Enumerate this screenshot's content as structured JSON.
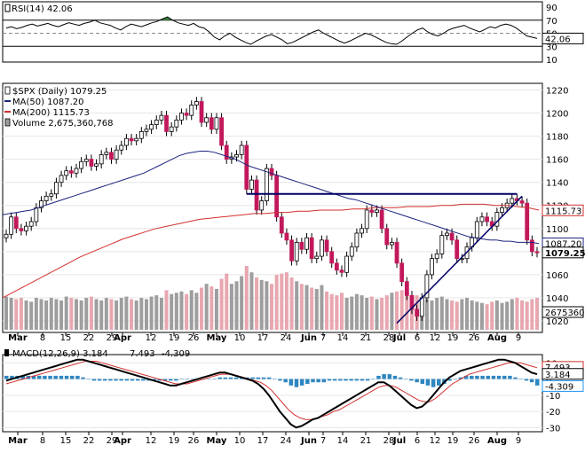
{
  "chart_data": [
    {
      "type": "line",
      "panel": "rsi",
      "legend": "RSI(14) 42.06",
      "last_value_label": "42.06",
      "y_ticks": [
        "90",
        "70",
        "50",
        "30",
        "10"
      ],
      "ylim": [
        10,
        90
      ],
      "reference_levels": [
        70,
        50,
        30
      ],
      "series": [
        {
          "values": [
            58,
            60,
            57,
            59,
            62,
            64,
            61,
            63,
            65,
            62,
            60,
            63,
            66,
            64,
            62,
            65,
            67,
            70,
            66,
            64,
            62,
            58,
            55,
            60,
            64,
            62,
            60,
            63,
            66,
            68,
            72,
            75,
            70,
            66,
            64,
            62,
            65,
            60,
            58,
            52,
            44,
            40,
            46,
            50,
            44,
            40,
            36,
            33,
            38,
            42,
            46,
            48,
            44,
            40,
            34,
            36,
            40,
            44,
            48,
            52,
            55,
            50,
            46,
            42,
            38,
            35,
            38,
            42,
            46,
            50,
            48,
            44,
            40,
            36,
            34,
            33,
            38,
            44,
            50,
            55,
            58,
            52,
            48,
            46,
            50,
            55,
            58,
            60,
            62,
            58,
            55,
            52,
            56,
            60,
            58,
            62,
            64,
            62,
            58,
            52,
            46,
            44,
            42
          ]
        }
      ],
      "colors": {
        "line": "#000000",
        "overbought_fill": "#2e7d32",
        "oversold_fill": "#c62828"
      }
    },
    {
      "type": "candlestick",
      "panel": "price",
      "legend": [
        {
          "label": "$SPX (Daily) 1079.25",
          "marker": "candle",
          "color": "#000000"
        },
        {
          "label": "MA(50) 1087.20",
          "marker": "line",
          "color": "#1a237e"
        },
        {
          "label": "MA(200) 1115.73",
          "marker": "line",
          "color": "#d32f2f"
        },
        {
          "label": "Volume 2,675,360,768",
          "marker": "bar",
          "color": "#9e9e9e"
        }
      ],
      "y_ticks": [
        "1220",
        "1200",
        "1180",
        "1160",
        "1140",
        "1120",
        "1100",
        "1080",
        "1060",
        "1040",
        "1020"
      ],
      "ylim": [
        1010,
        1225
      ],
      "right_labels": [
        "1115.73",
        "1087.20",
        "1079.25",
        "2675360768"
      ],
      "close": [
        1095,
        1110,
        1100,
        1098,
        1102,
        1106,
        1118,
        1124,
        1128,
        1130,
        1140,
        1146,
        1150,
        1148,
        1152,
        1158,
        1160,
        1154,
        1156,
        1164,
        1166,
        1160,
        1168,
        1172,
        1178,
        1176,
        1178,
        1184,
        1186,
        1190,
        1194,
        1198,
        1184,
        1188,
        1194,
        1200,
        1198,
        1207,
        1210,
        1192,
        1196,
        1186,
        1196,
        1172,
        1160,
        1162,
        1164,
        1172,
        1134,
        1142,
        1116,
        1124,
        1152,
        1146,
        1110,
        1096,
        1090,
        1072,
        1088,
        1082,
        1092,
        1074,
        1076,
        1090,
        1080,
        1070,
        1064,
        1062,
        1076,
        1084,
        1096,
        1100,
        1116,
        1114,
        1116,
        1100,
        1086,
        1088,
        1070,
        1054,
        1042,
        1030,
        1024,
        1040,
        1060,
        1074,
        1078,
        1094,
        1096,
        1090,
        1074,
        1074,
        1084,
        1092,
        1106,
        1110,
        1106,
        1102,
        1114,
        1118,
        1122,
        1126,
        1124,
        1122,
        1090,
        1080,
        1079
      ],
      "ma50": [
        1112,
        1113,
        1114,
        1115,
        1116,
        1118,
        1120,
        1122,
        1124,
        1126,
        1128,
        1130,
        1132,
        1134,
        1136,
        1138,
        1140,
        1142,
        1144,
        1146,
        1148,
        1151,
        1154,
        1157,
        1160,
        1163,
        1165,
        1166,
        1167,
        1167,
        1166,
        1164,
        1162,
        1160,
        1157,
        1154,
        1152,
        1150,
        1148,
        1146,
        1144,
        1142,
        1140,
        1138,
        1136,
        1134,
        1132,
        1130,
        1128,
        1126,
        1125,
        1123,
        1121,
        1119,
        1117,
        1115,
        1113,
        1111,
        1109,
        1107,
        1105,
        1103,
        1101,
        1099,
        1097,
        1095,
        1093,
        1092,
        1091,
        1090,
        1090,
        1089,
        1089,
        1088,
        1088,
        1088,
        1087
      ],
      "ma200": [
        1040,
        1045,
        1050,
        1055,
        1060,
        1065,
        1070,
        1075,
        1079,
        1083,
        1087,
        1091,
        1094,
        1097,
        1100,
        1102,
        1104,
        1106,
        1108,
        1109,
        1110,
        1111,
        1112,
        1113,
        1113,
        1114,
        1114,
        1115,
        1115,
        1116,
        1116,
        1116,
        1117,
        1117,
        1118,
        1118,
        1118,
        1119,
        1119,
        1119,
        1120,
        1120,
        1121,
        1121,
        1121,
        1120,
        1120,
        1119,
        1118,
        1116
      ],
      "volume": [
        0.52,
        0.5,
        0.48,
        0.5,
        0.46,
        0.44,
        0.5,
        0.48,
        0.46,
        0.5,
        0.48,
        0.46,
        0.52,
        0.5,
        0.48,
        0.46,
        0.5,
        0.52,
        0.48,
        0.46,
        0.5,
        0.48,
        0.46,
        0.5,
        0.52,
        0.48,
        0.46,
        0.5,
        0.48,
        0.52,
        0.54,
        0.5,
        0.62,
        0.56,
        0.58,
        0.6,
        0.56,
        0.62,
        0.58,
        0.66,
        0.72,
        0.68,
        0.64,
        0.8,
        0.88,
        0.72,
        0.76,
        0.84,
        1.0,
        0.9,
        0.82,
        0.78,
        0.76,
        0.72,
        0.86,
        0.88,
        0.9,
        0.82,
        0.76,
        0.72,
        0.7,
        0.66,
        0.64,
        0.7,
        0.6,
        0.56,
        0.54,
        0.58,
        0.5,
        0.52,
        0.56,
        0.54,
        0.5,
        0.52,
        0.48,
        0.5,
        0.54,
        0.58,
        0.6,
        0.62,
        0.56,
        0.52,
        0.54,
        0.5,
        0.48,
        0.46,
        0.5,
        0.52,
        0.48,
        0.46,
        0.44,
        0.48,
        0.5,
        0.46,
        0.44,
        0.42,
        0.4,
        0.44,
        0.46,
        0.42,
        0.44,
        0.48,
        0.5,
        0.46,
        0.44,
        0.48,
        0.5
      ],
      "annotations": [
        {
          "type": "horizontal_resistance",
          "y": 1130,
          "start_index": 48,
          "end_index": 102
        },
        {
          "type": "trendline",
          "from": {
            "index": 78,
            "value": 1018
          },
          "to": {
            "index": 103,
            "value": 1128
          }
        }
      ],
      "colors": {
        "up": "#ffffff",
        "down": "#c2185b",
        "wick": "#000000",
        "volume_up": "#9e9e9e",
        "volume_down": "#e8a7b0",
        "annotation": "#000066"
      }
    },
    {
      "type": "line",
      "panel": "macd",
      "legend": [
        {
          "label": "MACD(12,26,9) 3.184",
          "color": "#000000"
        },
        {
          "label": "7.493",
          "color": "#d32f2f"
        },
        {
          "label": "-4.309",
          "color": "#2196f3"
        }
      ],
      "y_ticks": [
        "10",
        "0",
        "-10",
        "-20",
        "-30"
      ],
      "ylim": [
        -32,
        14
      ],
      "right_labels": [
        "7.493",
        "3.184",
        "-4.309"
      ],
      "series": [
        {
          "name": "MACD",
          "values": [
            -1,
            0,
            1,
            2,
            3,
            4,
            5,
            6,
            7,
            8,
            9,
            10,
            11,
            12,
            12,
            11,
            10,
            9,
            8,
            7,
            6,
            5,
            4,
            3,
            2,
            1,
            0,
            -1,
            -2,
            -3,
            -4,
            -4,
            -3,
            -2,
            -1,
            0,
            1,
            2,
            3,
            4,
            4,
            3,
            2,
            1,
            0,
            -1,
            -3,
            -6,
            -10,
            -15,
            -20,
            -24,
            -28,
            -30,
            -29,
            -27,
            -25,
            -24,
            -22,
            -20,
            -18,
            -16,
            -14,
            -12,
            -10,
            -8,
            -6,
            -4,
            -2,
            -2,
            -4,
            -7,
            -10,
            -13,
            -16,
            -18,
            -17,
            -14,
            -10,
            -6,
            -2,
            1,
            3,
            5,
            6,
            7,
            8,
            9,
            10,
            11,
            12,
            12,
            11,
            10,
            8,
            6,
            4,
            3
          ]
        },
        {
          "name": "Signal",
          "values": [
            -3,
            -2,
            -1,
            0,
            1,
            2,
            3,
            4,
            5,
            6,
            7,
            8,
            9,
            10,
            11,
            11,
            11,
            10,
            9,
            8,
            7,
            6,
            5,
            4,
            3,
            2,
            1,
            0,
            -1,
            -2,
            -3,
            -3,
            -3,
            -2,
            -1,
            0,
            1,
            2,
            3,
            3,
            3,
            2,
            1,
            0,
            -1,
            -2,
            -4,
            -7,
            -11,
            -15,
            -19,
            -22,
            -24,
            -25,
            -25,
            -24,
            -23,
            -22,
            -20,
            -19,
            -17,
            -15,
            -13,
            -11,
            -9,
            -7,
            -5,
            -4,
            -4,
            -5,
            -7,
            -9,
            -11,
            -13,
            -14,
            -14,
            -12,
            -9,
            -6,
            -3,
            -1,
            1,
            3,
            4,
            5,
            6,
            7,
            8,
            9,
            10,
            10,
            10,
            9,
            8,
            7
          ]
        },
        {
          "name": "Histogram",
          "values": [
            2,
            2,
            2,
            2,
            2,
            2,
            2,
            2,
            2,
            2,
            2,
            2,
            2,
            2,
            1,
            0,
            -1,
            -1,
            -1,
            -1,
            -1,
            -1,
            -1,
            -1,
            -1,
            -1,
            -1,
            -1,
            -1,
            -1,
            -1,
            -1,
            0,
            0,
            0,
            0,
            0,
            0,
            0,
            1,
            1,
            1,
            1,
            1,
            1,
            1,
            1,
            1,
            1,
            0,
            -1,
            -2,
            -4,
            -5,
            -4,
            -3,
            -2,
            -2,
            -2,
            -1,
            -1,
            -1,
            -1,
            -1,
            -1,
            -1,
            -1,
            0,
            2,
            3,
            3,
            2,
            1,
            0,
            -1,
            -2,
            -3,
            -4,
            -5,
            -4,
            -3,
            -1,
            0,
            1,
            2,
            2,
            2,
            2,
            2,
            2,
            2,
            2,
            2,
            1,
            0,
            -1,
            -2,
            -4
          ]
        }
      ],
      "colors": {
        "macd": "#000000",
        "signal": "#d32f2f",
        "histogram": "#2e86c1"
      }
    }
  ],
  "x_axis": {
    "months": [
      {
        "label": "Mar",
        "bold": true
      },
      {
        "label": "8",
        "bold": false
      },
      {
        "label": "15",
        "bold": false
      },
      {
        "label": "22",
        "bold": false
      },
      {
        "label": "29",
        "bold": false
      },
      {
        "label": "Apr",
        "bold": true
      },
      {
        "label": "12",
        "bold": false
      },
      {
        "label": "19",
        "bold": false
      },
      {
        "label": "26",
        "bold": false
      },
      {
        "label": "May",
        "bold": true
      },
      {
        "label": "10",
        "bold": false
      },
      {
        "label": "17",
        "bold": false
      },
      {
        "label": "24",
        "bold": false
      },
      {
        "label": "Jun",
        "bold": true
      },
      {
        "label": "7",
        "bold": false
      },
      {
        "label": "14",
        "bold": false
      },
      {
        "label": "21",
        "bold": false
      },
      {
        "label": "28",
        "bold": false
      },
      {
        "label": "Jul",
        "bold": true
      },
      {
        "label": "6",
        "bold": false
      },
      {
        "label": "12",
        "bold": false
      },
      {
        "label": "19",
        "bold": false
      },
      {
        "label": "26",
        "bold": false
      },
      {
        "label": "Aug",
        "bold": true
      },
      {
        "label": "9",
        "bold": false
      }
    ]
  }
}
